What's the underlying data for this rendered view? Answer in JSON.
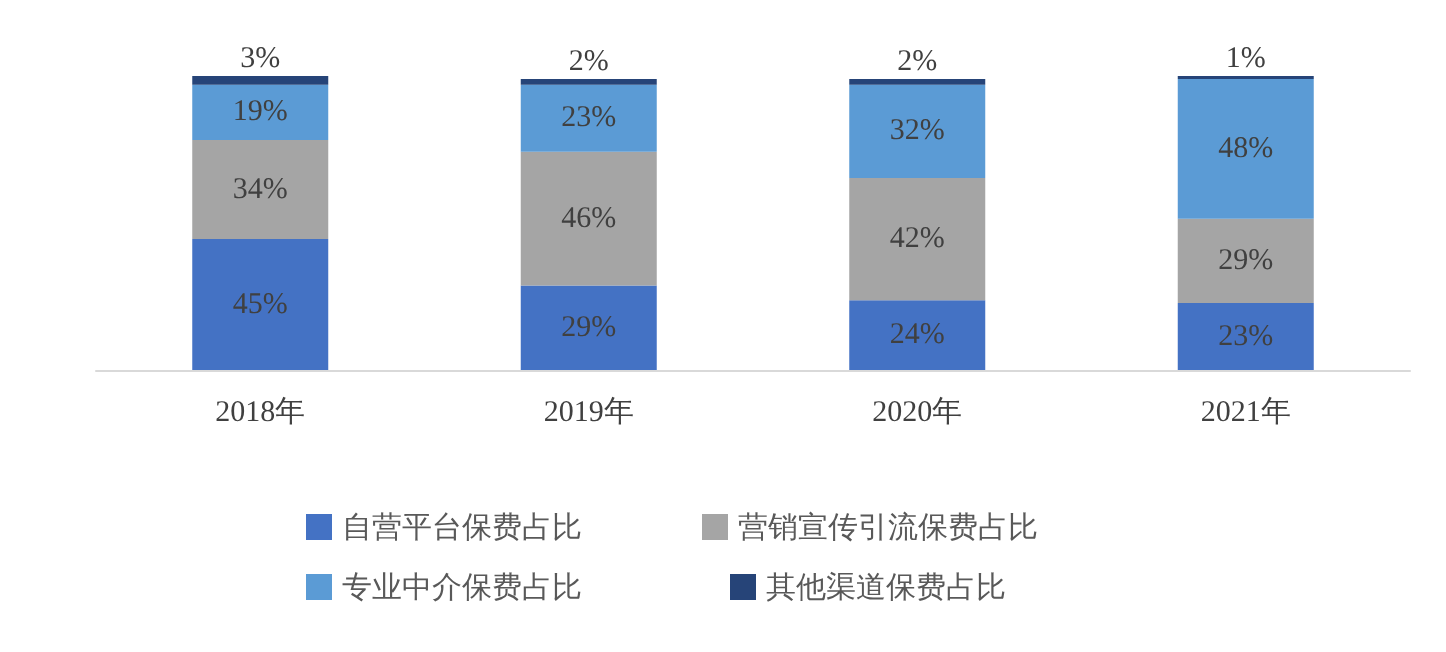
{
  "chart_data": {
    "type": "bar",
    "stacked": true,
    "categories": [
      "2018年",
      "2019年",
      "2020年",
      "2021年"
    ],
    "series": [
      {
        "name": "自营平台保费占比",
        "color": "#4472c4",
        "values": [
          45,
          29,
          24,
          23
        ],
        "value_labels": [
          "45%",
          "29%",
          "24%",
          "23%"
        ]
      },
      {
        "name": "营销宣传引流保费占比",
        "color": "#a5a5a5",
        "values": [
          34,
          46,
          42,
          29
        ],
        "value_labels": [
          "34%",
          "46%",
          "42%",
          "29%"
        ]
      },
      {
        "name": "专业中介保费占比",
        "color": "#5b9bd5",
        "values": [
          19,
          23,
          32,
          48
        ],
        "value_labels": [
          "19%",
          "23%",
          "32%",
          "48%"
        ]
      },
      {
        "name": "其他渠道保费占比",
        "color": "#264478",
        "values": [
          3,
          2,
          2,
          1
        ],
        "value_labels": [
          "3%",
          "2%",
          "2%",
          "1%"
        ]
      }
    ],
    "legend": "bottom"
  }
}
